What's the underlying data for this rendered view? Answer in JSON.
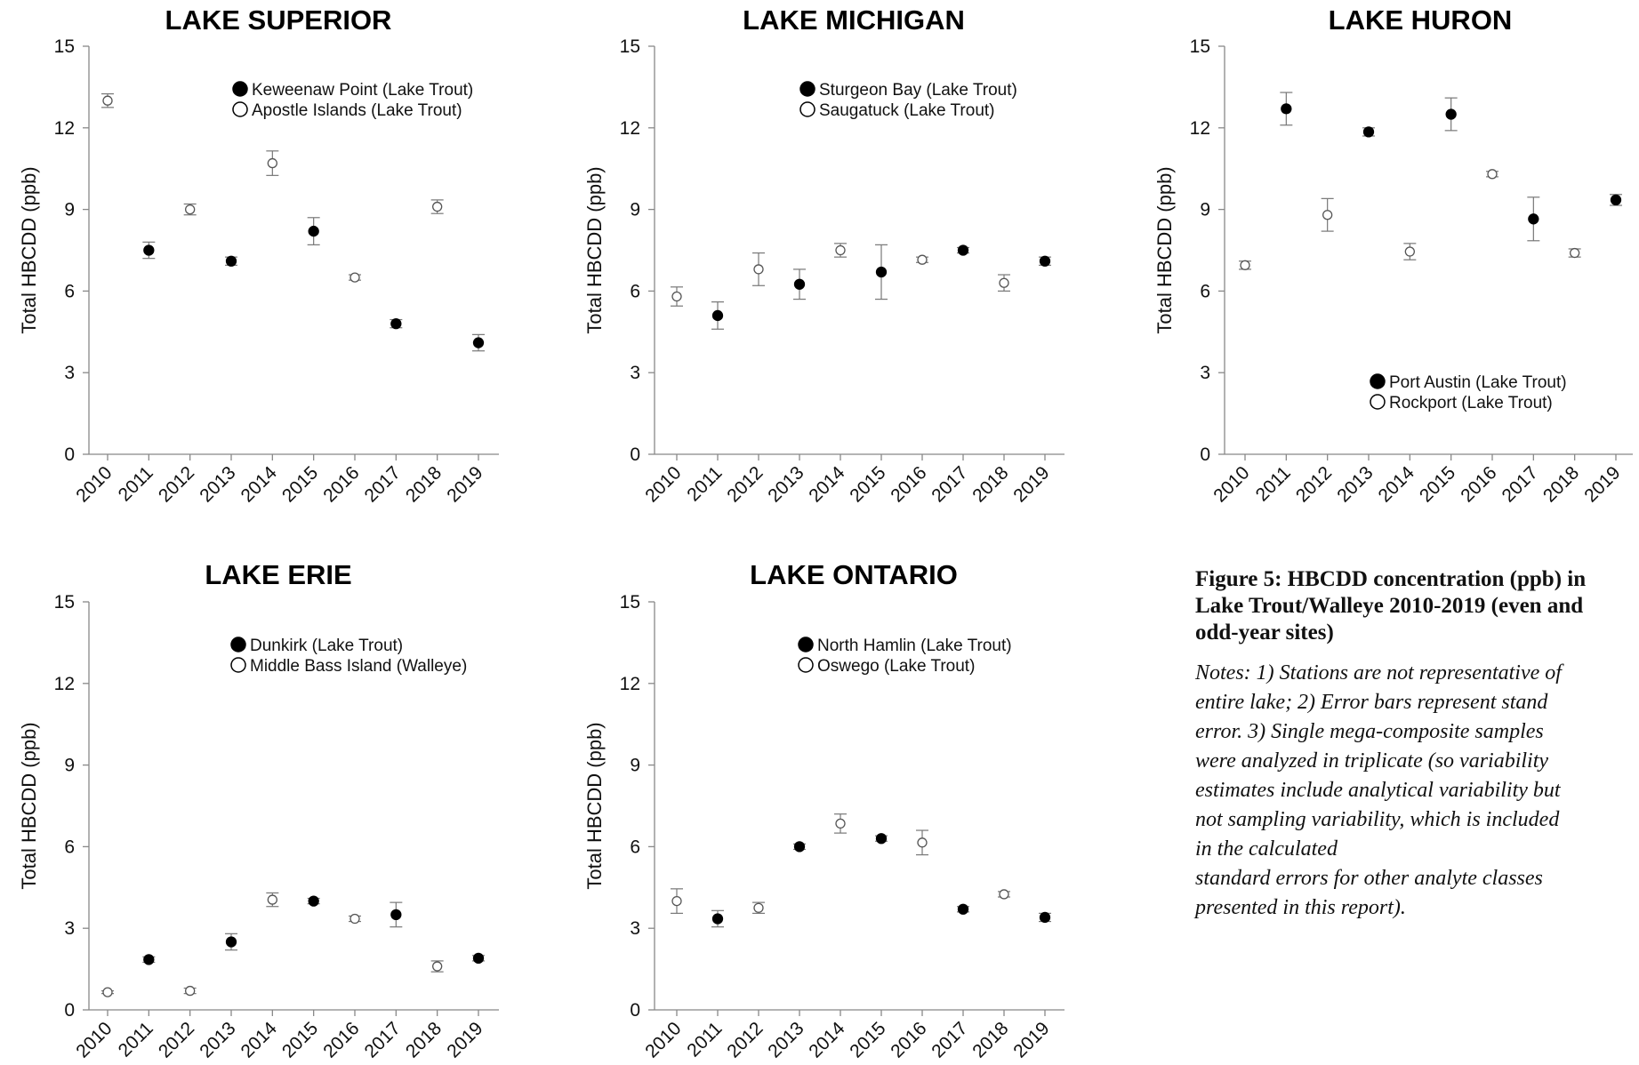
{
  "chart_data": [
    {
      "type": "scatter",
      "title": "LAKE SUPERIOR",
      "xlabel": "",
      "ylabel": "Total HBCDD (ppb)",
      "categories": [
        "2010",
        "2011",
        "2012",
        "2013",
        "2014",
        "2015",
        "2016",
        "2017",
        "2018",
        "2019"
      ],
      "ylim": [
        0,
        15
      ],
      "yticks": [
        0,
        3,
        6,
        9,
        12,
        15
      ],
      "legend_position": "top-right",
      "series": [
        {
          "name": "Keweenaw Point (Lake Trout)",
          "marker": "filled",
          "points": [
            {
              "x": "2011",
              "y": 7.5,
              "err": 0.3
            },
            {
              "x": "2013",
              "y": 7.1,
              "err": 0.15
            },
            {
              "x": "2015",
              "y": 8.2,
              "err": 0.5
            },
            {
              "x": "2017",
              "y": 4.8,
              "err": 0.15
            },
            {
              "x": "2019",
              "y": 4.1,
              "err": 0.3
            }
          ]
        },
        {
          "name": "Apostle Islands (Lake Trout)",
          "marker": "open",
          "points": [
            {
              "x": "2010",
              "y": 13.0,
              "err": 0.25
            },
            {
              "x": "2012",
              "y": 9.0,
              "err": 0.2
            },
            {
              "x": "2014",
              "y": 10.7,
              "err": 0.45
            },
            {
              "x": "2016",
              "y": 6.5,
              "err": 0.1
            },
            {
              "x": "2018",
              "y": 9.1,
              "err": 0.25
            }
          ]
        }
      ]
    },
    {
      "type": "scatter",
      "title": "LAKE MICHIGAN",
      "xlabel": "",
      "ylabel": "Total HBCDD (ppb)",
      "categories": [
        "2010",
        "2011",
        "2012",
        "2013",
        "2014",
        "2015",
        "2016",
        "2017",
        "2018",
        "2019"
      ],
      "ylim": [
        0,
        15
      ],
      "yticks": [
        0,
        3,
        6,
        9,
        12,
        15
      ],
      "legend_position": "top-center",
      "series": [
        {
          "name": "Sturgeon Bay (Lake Trout)",
          "marker": "filled",
          "points": [
            {
              "x": "2011",
              "y": 5.1,
              "err": 0.5
            },
            {
              "x": "2013",
              "y": 6.25,
              "err": 0.55
            },
            {
              "x": "2015",
              "y": 6.7,
              "err": 1.0
            },
            {
              "x": "2017",
              "y": 7.5,
              "err": 0.1
            },
            {
              "x": "2019",
              "y": 7.1,
              "err": 0.15
            }
          ]
        },
        {
          "name": "Saugatuck (Lake Trout)",
          "marker": "open",
          "points": [
            {
              "x": "2010",
              "y": 5.8,
              "err": 0.35
            },
            {
              "x": "2012",
              "y": 6.8,
              "err": 0.6
            },
            {
              "x": "2014",
              "y": 7.5,
              "err": 0.25
            },
            {
              "x": "2016",
              "y": 7.15,
              "err": 0.1
            },
            {
              "x": "2018",
              "y": 6.3,
              "err": 0.3
            }
          ]
        }
      ]
    },
    {
      "type": "scatter",
      "title": "LAKE HURON",
      "xlabel": "",
      "ylabel": "Total HBCDD (ppb)",
      "categories": [
        "2010",
        "2011",
        "2012",
        "2013",
        "2014",
        "2015",
        "2016",
        "2017",
        "2018",
        "2019"
      ],
      "ylim": [
        0,
        15
      ],
      "yticks": [
        0,
        3,
        6,
        9,
        12,
        15
      ],
      "legend_position": "bottom-center",
      "series": [
        {
          "name": "Port Austin (Lake Trout)",
          "marker": "filled",
          "points": [
            {
              "x": "2011",
              "y": 12.7,
              "err": 0.6
            },
            {
              "x": "2013",
              "y": 11.85,
              "err": 0.15
            },
            {
              "x": "2015",
              "y": 12.5,
              "err": 0.6
            },
            {
              "x": "2017",
              "y": 8.65,
              "err": 0.8
            },
            {
              "x": "2019",
              "y": 9.35,
              "err": 0.2
            }
          ]
        },
        {
          "name": "Rockport (Lake Trout)",
          "marker": "open",
          "points": [
            {
              "x": "2010",
              "y": 6.95,
              "err": 0.15
            },
            {
              "x": "2012",
              "y": 8.8,
              "err": 0.6
            },
            {
              "x": "2014",
              "y": 7.45,
              "err": 0.3
            },
            {
              "x": "2016",
              "y": 10.3,
              "err": 0.1
            },
            {
              "x": "2018",
              "y": 7.4,
              "err": 0.15
            }
          ]
        }
      ]
    },
    {
      "type": "scatter",
      "title": "LAKE ERIE",
      "xlabel": "",
      "ylabel": "Total HBCDD (ppb)",
      "categories": [
        "2010",
        "2011",
        "2012",
        "2013",
        "2014",
        "2015",
        "2016",
        "2017",
        "2018",
        "2019"
      ],
      "ylim": [
        0,
        15
      ],
      "yticks": [
        0,
        3,
        6,
        9,
        12,
        15
      ],
      "legend_position": "top-right",
      "series": [
        {
          "name": "Dunkirk (Lake Trout)",
          "marker": "filled",
          "points": [
            {
              "x": "2011",
              "y": 1.85,
              "err": 0.1
            },
            {
              "x": "2013",
              "y": 2.5,
              "err": 0.3
            },
            {
              "x": "2015",
              "y": 4.0,
              "err": 0.1
            },
            {
              "x": "2017",
              "y": 3.5,
              "err": 0.45
            },
            {
              "x": "2019",
              "y": 1.9,
              "err": 0.1
            }
          ]
        },
        {
          "name": "Middle Bass Island (Walleye)",
          "marker": "open",
          "points": [
            {
              "x": "2010",
              "y": 0.65,
              "err": 0.05
            },
            {
              "x": "2012",
              "y": 0.7,
              "err": 0.1
            },
            {
              "x": "2014",
              "y": 4.05,
              "err": 0.25
            },
            {
              "x": "2016",
              "y": 3.35,
              "err": 0.1
            },
            {
              "x": "2018",
              "y": 1.6,
              "err": 0.2
            }
          ]
        }
      ]
    },
    {
      "type": "scatter",
      "title": "LAKE ONTARIO",
      "xlabel": "",
      "ylabel": "Total HBCDD (ppb)",
      "categories": [
        "2010",
        "2011",
        "2012",
        "2013",
        "2014",
        "2015",
        "2016",
        "2017",
        "2018",
        "2019"
      ],
      "ylim": [
        0,
        15
      ],
      "yticks": [
        0,
        3,
        6,
        9,
        12,
        15
      ],
      "legend_position": "top-center",
      "series": [
        {
          "name": "North Hamlin (Lake Trout)",
          "marker": "filled",
          "points": [
            {
              "x": "2011",
              "y": 3.35,
              "err": 0.3
            },
            {
              "x": "2013",
              "y": 6.0,
              "err": 0.1
            },
            {
              "x": "2015",
              "y": 6.3,
              "err": 0.1
            },
            {
              "x": "2017",
              "y": 3.7,
              "err": 0.1
            },
            {
              "x": "2019",
              "y": 3.4,
              "err": 0.15
            }
          ]
        },
        {
          "name": "Oswego (Lake Trout)",
          "marker": "open",
          "points": [
            {
              "x": "2010",
              "y": 4.0,
              "err": 0.45
            },
            {
              "x": "2012",
              "y": 3.75,
              "err": 0.2
            },
            {
              "x": "2014",
              "y": 6.85,
              "err": 0.35
            },
            {
              "x": "2016",
              "y": 6.15,
              "err": 0.45
            },
            {
              "x": "2018",
              "y": 4.25,
              "err": 0.1
            }
          ]
        }
      ]
    }
  ],
  "caption": {
    "title": "Figure 5: HBCDD concentration (ppb) in Lake Trout/Walleye 2010-2019 (even and odd-year sites)",
    "notes_lines": [
      "Notes: 1) Stations are not representative of",
      "entire lake; 2) Error bars represent stand",
      "error. 3) Single mega-composite samples",
      "were analyzed in triplicate (so variability",
      "estimates include analytical variability but",
      "not sampling variability, which is included",
      "in the calculated",
      "standard errors for other analyte classes",
      "presented in this report)."
    ]
  }
}
